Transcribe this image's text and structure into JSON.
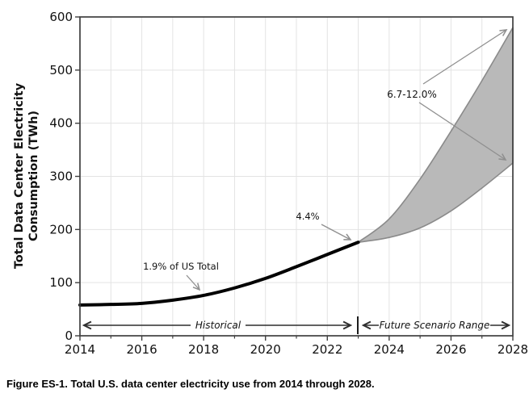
{
  "figure_caption": "Figure ES-1. Total U.S. data center electricity use from 2014 through 2028.",
  "chart_data": {
    "type": "area",
    "title": "",
    "xlabel": "",
    "ylabel_lines": [
      "Total Data Center Electricity",
      "Consumption (TWh)"
    ],
    "xlim": [
      2014,
      2028
    ],
    "ylim": [
      0,
      600
    ],
    "x_major_ticks": [
      2014,
      2016,
      2018,
      2020,
      2022,
      2024,
      2026,
      2028
    ],
    "x_minor_ticks": [
      2015,
      2017,
      2019,
      2021,
      2023,
      2025,
      2027
    ],
    "y_ticks": [
      0,
      100,
      200,
      300,
      400,
      500,
      600
    ],
    "grid": "on",
    "legend": "none",
    "series": [
      {
        "name": "Historical",
        "type": "line",
        "color": "#000000",
        "x": [
          2014,
          2015,
          2016,
          2017,
          2018,
          2019,
          2020,
          2021,
          2022,
          2023
        ],
        "values": [
          58,
          59,
          61,
          67,
          76,
          90,
          108,
          130,
          153,
          176
        ]
      },
      {
        "name": "Future Scenario Range",
        "type": "band",
        "fill": "#b9b9b9",
        "edge": "#8a8a8a",
        "x": [
          2023,
          2024,
          2025,
          2026,
          2027,
          2028
        ],
        "upper": [
          176,
          220,
          295,
          385,
          480,
          580
        ],
        "lower": [
          176,
          185,
          203,
          235,
          278,
          325
        ]
      }
    ],
    "annotations": [
      {
        "text": "1.9% of US Total",
        "points_to": {
          "x": 2018,
          "y": 76
        }
      },
      {
        "text": "4.4%",
        "points_to": {
          "x": 2023,
          "y": 176
        }
      },
      {
        "text": "6.7-12.0%",
        "points_to_upper": {
          "x": 2028,
          "y": 580
        },
        "points_to_lower": {
          "x": 2028,
          "y": 325
        }
      }
    ],
    "range_labels": [
      {
        "text": "Historical",
        "span": [
          2014,
          2023
        ]
      },
      {
        "text": "Future Scenario Range",
        "span": [
          2023,
          2028
        ]
      }
    ]
  },
  "colors": {
    "line": "#000000",
    "band_fill": "#b9b9b9",
    "band_edge": "#8a8a8a",
    "grid": "#e3e3e3",
    "spine": "#3f3f3f",
    "annotation_arrow": "#8f8f8f",
    "range_arrow": "#2e2e2e",
    "text": "#111111"
  }
}
